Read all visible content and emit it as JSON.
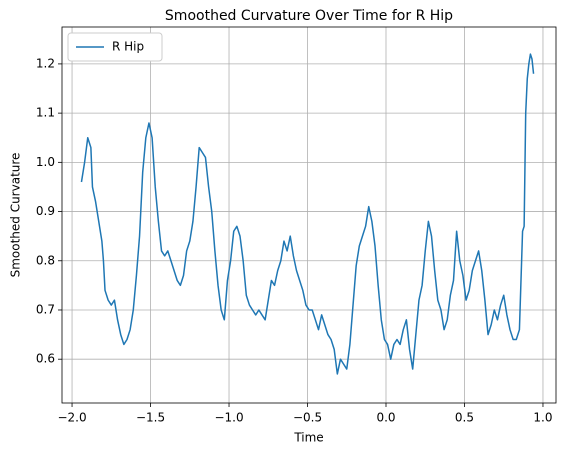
{
  "chart_data": {
    "type": "line",
    "title": "Smoothed Curvature Over Time for R Hip",
    "xlabel": "Time",
    "ylabel": "Smoothed Curvature",
    "x": [
      -1.94,
      -1.92,
      -1.9,
      -1.88,
      -1.87,
      -1.85,
      -1.83,
      -1.81,
      -1.8,
      -1.79,
      -1.77,
      -1.75,
      -1.73,
      -1.71,
      -1.69,
      -1.67,
      -1.65,
      -1.63,
      -1.61,
      -1.59,
      -1.57,
      -1.55,
      -1.53,
      -1.51,
      -1.49,
      -1.47,
      -1.45,
      -1.43,
      -1.41,
      -1.39,
      -1.37,
      -1.35,
      -1.33,
      -1.31,
      -1.29,
      -1.27,
      -1.25,
      -1.23,
      -1.21,
      -1.19,
      -1.17,
      -1.15,
      -1.13,
      -1.11,
      -1.09,
      -1.07,
      -1.05,
      -1.03,
      -1.01,
      -0.99,
      -0.97,
      -0.95,
      -0.93,
      -0.91,
      -0.89,
      -0.87,
      -0.85,
      -0.83,
      -0.81,
      -0.79,
      -0.77,
      -0.75,
      -0.73,
      -0.71,
      -0.69,
      -0.67,
      -0.65,
      -0.63,
      -0.61,
      -0.59,
      -0.57,
      -0.55,
      -0.53,
      -0.51,
      -0.49,
      -0.47,
      -0.45,
      -0.43,
      -0.41,
      -0.39,
      -0.37,
      -0.35,
      -0.33,
      -0.31,
      -0.29,
      -0.27,
      -0.25,
      -0.23,
      -0.21,
      -0.19,
      -0.17,
      -0.15,
      -0.13,
      -0.11,
      -0.09,
      -0.07,
      -0.05,
      -0.03,
      -0.01,
      0.01,
      0.03,
      0.05,
      0.07,
      0.09,
      0.11,
      0.13,
      0.15,
      0.17,
      0.19,
      0.21,
      0.23,
      0.25,
      0.27,
      0.29,
      0.31,
      0.33,
      0.35,
      0.37,
      0.39,
      0.41,
      0.43,
      0.45,
      0.47,
      0.49,
      0.51,
      0.53,
      0.55,
      0.57,
      0.59,
      0.61,
      0.63,
      0.65,
      0.67,
      0.69,
      0.71,
      0.73,
      0.75,
      0.77,
      0.79,
      0.81,
      0.83,
      0.85,
      0.87,
      0.88,
      0.89,
      0.9,
      0.91,
      0.92,
      0.93,
      0.94
    ],
    "series": [
      {
        "name": "R Hip",
        "color": "#1f77b4",
        "values": [
          0.96,
          1.0,
          1.05,
          1.03,
          0.95,
          0.92,
          0.88,
          0.84,
          0.8,
          0.74,
          0.72,
          0.71,
          0.72,
          0.68,
          0.65,
          0.63,
          0.64,
          0.66,
          0.7,
          0.77,
          0.85,
          0.98,
          1.05,
          1.08,
          1.05,
          0.95,
          0.88,
          0.82,
          0.81,
          0.82,
          0.8,
          0.78,
          0.76,
          0.75,
          0.77,
          0.82,
          0.84,
          0.88,
          0.95,
          1.03,
          1.02,
          1.01,
          0.95,
          0.9,
          0.82,
          0.75,
          0.7,
          0.68,
          0.76,
          0.8,
          0.86,
          0.87,
          0.85,
          0.8,
          0.73,
          0.71,
          0.7,
          0.69,
          0.7,
          0.69,
          0.68,
          0.72,
          0.76,
          0.75,
          0.78,
          0.8,
          0.84,
          0.82,
          0.85,
          0.81,
          0.78,
          0.76,
          0.74,
          0.71,
          0.7,
          0.7,
          0.68,
          0.66,
          0.69,
          0.67,
          0.65,
          0.64,
          0.62,
          0.57,
          0.6,
          0.59,
          0.58,
          0.63,
          0.71,
          0.79,
          0.83,
          0.85,
          0.87,
          0.91,
          0.88,
          0.83,
          0.75,
          0.68,
          0.64,
          0.63,
          0.6,
          0.63,
          0.64,
          0.63,
          0.66,
          0.68,
          0.62,
          0.58,
          0.65,
          0.72,
          0.75,
          0.82,
          0.88,
          0.85,
          0.78,
          0.72,
          0.7,
          0.66,
          0.68,
          0.73,
          0.76,
          0.86,
          0.8,
          0.77,
          0.72,
          0.74,
          0.78,
          0.8,
          0.82,
          0.78,
          0.72,
          0.65,
          0.67,
          0.7,
          0.68,
          0.71,
          0.73,
          0.69,
          0.66,
          0.64,
          0.64,
          0.66,
          0.86,
          0.87,
          1.1,
          1.17,
          1.2,
          1.22,
          1.21,
          1.18
        ]
      }
    ],
    "xlim": [
      -2.064,
      1.083
    ],
    "xticks": [
      {
        "value": -2.0,
        "label": "−2.0"
      },
      {
        "value": -1.5,
        "label": "−1.5"
      },
      {
        "value": -1.0,
        "label": "−1.0"
      },
      {
        "value": -0.5,
        "label": "−0.5"
      },
      {
        "value": 0,
        "label": "0.0"
      },
      0.5,
      {
        "value": 1,
        "label": "1.0"
      }
    ],
    "ylim": [
      0.511,
      1.275
    ],
    "yticks": [
      0.6,
      0.7,
      0.8,
      0.9,
      {
        "value": 1,
        "label": "1.0"
      },
      1.1,
      1.2
    ],
    "grid": true,
    "legend": "upper left"
  }
}
